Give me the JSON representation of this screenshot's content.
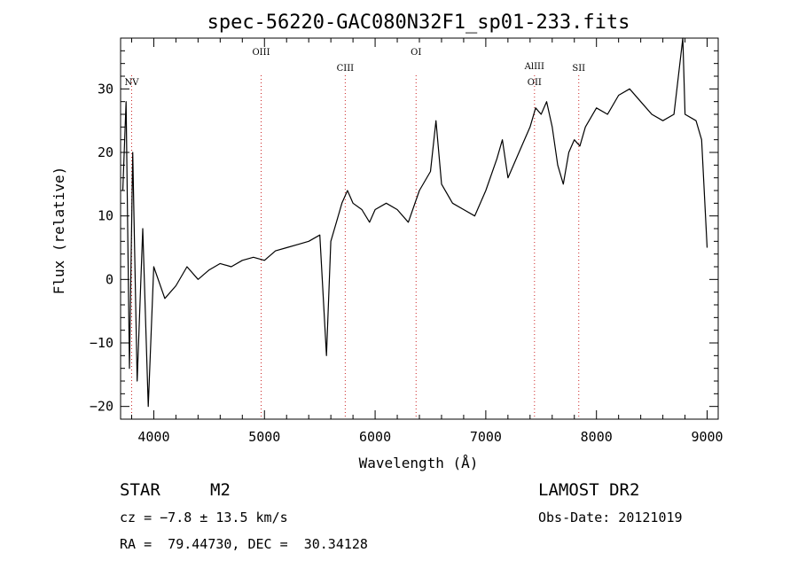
{
  "chart_data": {
    "type": "line",
    "title": "spec-56220-GAC080N32F1_sp01-233.fits",
    "xlabel": "Wavelength (Å)",
    "ylabel": "Flux (relative)",
    "xlim": [
      3700,
      9100
    ],
    "ylim": [
      -22,
      38
    ],
    "xticks": [
      "4000",
      "5000",
      "6000",
      "7000",
      "8000",
      "9000"
    ],
    "xtick_values": [
      4000,
      5000,
      6000,
      7000,
      8000,
      9000
    ],
    "yticks": [
      "−20",
      "−10",
      "0",
      "10",
      "20",
      "30"
    ],
    "ytick_values": [
      -20,
      -10,
      0,
      10,
      20,
      30
    ],
    "grid": false,
    "line_color": "#000000",
    "marker_color": "#cc2222",
    "lines": [
      {
        "label": "NV",
        "x": 3800
      },
      {
        "label": "OIII",
        "x": 4970
      },
      {
        "label": "CIII",
        "x": 5730
      },
      {
        "label": "OI",
        "x": 6370
      },
      {
        "label": "AlIII",
        "x": 7440
      },
      {
        "label": "OII",
        "x": 7440
      },
      {
        "label": "SII",
        "x": 7840
      }
    ],
    "series": [
      {
        "x": [
          3720,
          3750,
          3780,
          3810,
          3850,
          3900,
          3950,
          4000,
          4100,
          4200,
          4300,
          4400,
          4500,
          4600,
          4700,
          4800,
          4900,
          5000,
          5100,
          5200,
          5300,
          5400,
          5500,
          5560,
          5600,
          5650,
          5700,
          5750,
          5800,
          5880,
          5950,
          6000,
          6100,
          6200,
          6300,
          6400,
          6500,
          6550,
          6600,
          6700,
          6800,
          6900,
          7000,
          7100,
          7150,
          7200,
          7300,
          7400,
          7450,
          7500,
          7550,
          7600,
          7650,
          7700,
          7750,
          7800,
          7850,
          7900,
          8000,
          8100,
          8200,
          8300,
          8400,
          8500,
          8600,
          8700,
          8780,
          8800,
          8900,
          8950,
          9000
        ],
        "y": [
          14,
          28,
          -14,
          20,
          -16,
          8,
          -20,
          2,
          -3,
          -1,
          2,
          0,
          1.5,
          2.5,
          2,
          3,
          3.5,
          3,
          4.5,
          5,
          5.5,
          6,
          7,
          -12,
          6,
          9,
          12,
          14,
          12,
          11,
          9,
          11,
          12,
          11,
          9,
          14,
          17,
          25,
          15,
          12,
          11,
          10,
          14,
          19,
          22,
          16,
          20,
          24,
          27,
          26,
          28,
          24,
          18,
          15,
          20,
          22,
          21,
          24,
          27,
          26,
          29,
          30,
          28,
          26,
          25,
          26,
          38,
          26,
          25,
          22,
          5
        ]
      }
    ]
  },
  "info": {
    "object_class": "STAR",
    "subclass": "M2",
    "cz": "cz = −7.8 ± 13.5 km/s",
    "coords": "RA =  79.44730, DEC =  30.34128",
    "survey": "LAMOST DR2",
    "obs_date": "Obs-Date: 20121019"
  }
}
